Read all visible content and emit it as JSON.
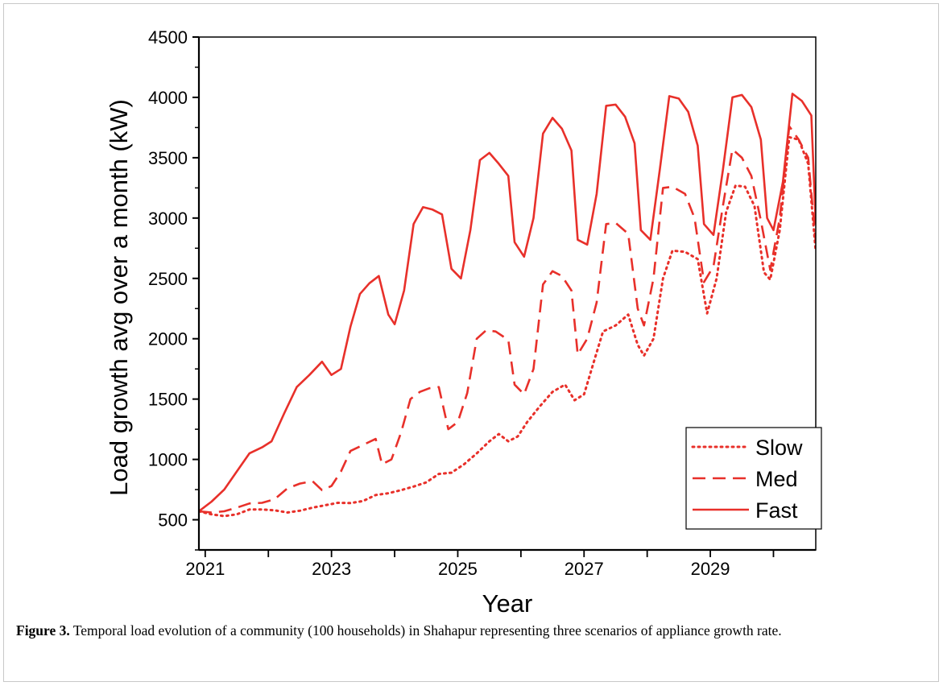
{
  "caption": {
    "label": "Figure 3.",
    "text": " Temporal load evolution of a community (100 households) in Shahapur representing three scenarios of appliance growth rate."
  },
  "chart_data": {
    "type": "line",
    "title": "",
    "xlabel": "Year",
    "ylabel": "Load growth avg over a month (kW)",
    "xlim": [
      2020.9,
      2030.67
    ],
    "ylim": [
      250,
      4500
    ],
    "xticks": [
      2021,
      2023,
      2025,
      2027,
      2029
    ],
    "yticks": [
      500,
      1000,
      1500,
      2000,
      2500,
      3000,
      3500,
      4000,
      4500
    ],
    "grid": false,
    "legend_position": "bottom-right",
    "color": "#e8302a",
    "series": [
      {
        "name": "Slow",
        "style": "dotted",
        "points": [
          [
            2020.9,
            570
          ],
          [
            2021.1,
            545
          ],
          [
            2021.3,
            530
          ],
          [
            2021.5,
            545
          ],
          [
            2021.7,
            585
          ],
          [
            2021.9,
            585
          ],
          [
            2022.1,
            578
          ],
          [
            2022.3,
            560
          ],
          [
            2022.5,
            575
          ],
          [
            2022.7,
            600
          ],
          [
            2022.9,
            620
          ],
          [
            2023.1,
            640
          ],
          [
            2023.3,
            638
          ],
          [
            2023.5,
            655
          ],
          [
            2023.7,
            705
          ],
          [
            2023.9,
            720
          ],
          [
            2024.1,
            745
          ],
          [
            2024.3,
            775
          ],
          [
            2024.5,
            810
          ],
          [
            2024.7,
            880
          ],
          [
            2024.9,
            890
          ],
          [
            2025.1,
            960
          ],
          [
            2025.3,
            1050
          ],
          [
            2025.5,
            1150
          ],
          [
            2025.65,
            1210
          ],
          [
            2025.8,
            1150
          ],
          [
            2025.95,
            1190
          ],
          [
            2026.1,
            1310
          ],
          [
            2026.3,
            1440
          ],
          [
            2026.5,
            1560
          ],
          [
            2026.7,
            1620
          ],
          [
            2026.85,
            1490
          ],
          [
            2027.0,
            1540
          ],
          [
            2027.15,
            1800
          ],
          [
            2027.3,
            2060
          ],
          [
            2027.5,
            2110
          ],
          [
            2027.7,
            2200
          ],
          [
            2027.85,
            1950
          ],
          [
            2027.95,
            1860
          ],
          [
            2028.1,
            2000
          ],
          [
            2028.25,
            2500
          ],
          [
            2028.4,
            2730
          ],
          [
            2028.6,
            2720
          ],
          [
            2028.8,
            2660
          ],
          [
            2028.95,
            2210
          ],
          [
            2029.1,
            2500
          ],
          [
            2029.25,
            3050
          ],
          [
            2029.4,
            3270
          ],
          [
            2029.55,
            3260
          ],
          [
            2029.7,
            3100
          ],
          [
            2029.85,
            2550
          ],
          [
            2029.95,
            2490
          ],
          [
            2030.1,
            2900
          ],
          [
            2030.25,
            3670
          ],
          [
            2030.4,
            3650
          ],
          [
            2030.55,
            3450
          ],
          [
            2030.67,
            2720
          ]
        ]
      },
      {
        "name": "Med",
        "style": "dashed",
        "points": [
          [
            2020.9,
            570
          ],
          [
            2021.1,
            560
          ],
          [
            2021.3,
            570
          ],
          [
            2021.5,
            600
          ],
          [
            2021.7,
            635
          ],
          [
            2021.9,
            640
          ],
          [
            2022.1,
            670
          ],
          [
            2022.3,
            760
          ],
          [
            2022.5,
            800
          ],
          [
            2022.7,
            820
          ],
          [
            2022.85,
            745
          ],
          [
            2023.0,
            780
          ],
          [
            2023.15,
            900
          ],
          [
            2023.3,
            1070
          ],
          [
            2023.5,
            1120
          ],
          [
            2023.7,
            1170
          ],
          [
            2023.8,
            960
          ],
          [
            2023.95,
            1000
          ],
          [
            2024.1,
            1220
          ],
          [
            2024.25,
            1500
          ],
          [
            2024.4,
            1560
          ],
          [
            2024.55,
            1590
          ],
          [
            2024.7,
            1600
          ],
          [
            2024.85,
            1250
          ],
          [
            2025.0,
            1310
          ],
          [
            2025.15,
            1550
          ],
          [
            2025.3,
            2000
          ],
          [
            2025.45,
            2070
          ],
          [
            2025.6,
            2060
          ],
          [
            2025.8,
            1990
          ],
          [
            2025.9,
            1620
          ],
          [
            2026.05,
            1540
          ],
          [
            2026.2,
            1750
          ],
          [
            2026.35,
            2450
          ],
          [
            2026.5,
            2560
          ],
          [
            2026.65,
            2520
          ],
          [
            2026.8,
            2400
          ],
          [
            2026.9,
            1870
          ],
          [
            2027.05,
            2000
          ],
          [
            2027.2,
            2300
          ],
          [
            2027.35,
            2950
          ],
          [
            2027.5,
            2960
          ],
          [
            2027.7,
            2870
          ],
          [
            2027.85,
            2250
          ],
          [
            2027.95,
            2110
          ],
          [
            2028.1,
            2500
          ],
          [
            2028.25,
            3250
          ],
          [
            2028.4,
            3260
          ],
          [
            2028.6,
            3200
          ],
          [
            2028.75,
            3000
          ],
          [
            2028.9,
            2470
          ],
          [
            2029.05,
            2600
          ],
          [
            2029.2,
            3100
          ],
          [
            2029.35,
            3570
          ],
          [
            2029.5,
            3500
          ],
          [
            2029.65,
            3350
          ],
          [
            2029.8,
            2980
          ],
          [
            2029.95,
            2570
          ],
          [
            2030.1,
            3000
          ],
          [
            2030.25,
            3760
          ],
          [
            2030.4,
            3650
          ],
          [
            2030.55,
            3500
          ],
          [
            2030.67,
            2800
          ]
        ]
      },
      {
        "name": "Fast",
        "style": "solid",
        "points": [
          [
            2020.9,
            570
          ],
          [
            2021.1,
            650
          ],
          [
            2021.3,
            750
          ],
          [
            2021.5,
            900
          ],
          [
            2021.7,
            1050
          ],
          [
            2021.9,
            1100
          ],
          [
            2022.05,
            1150
          ],
          [
            2022.25,
            1380
          ],
          [
            2022.45,
            1600
          ],
          [
            2022.65,
            1700
          ],
          [
            2022.85,
            1810
          ],
          [
            2023.0,
            1700
          ],
          [
            2023.15,
            1750
          ],
          [
            2023.3,
            2100
          ],
          [
            2023.45,
            2370
          ],
          [
            2023.6,
            2460
          ],
          [
            2023.75,
            2520
          ],
          [
            2023.9,
            2200
          ],
          [
            2024.0,
            2120
          ],
          [
            2024.15,
            2400
          ],
          [
            2024.3,
            2950
          ],
          [
            2024.45,
            3090
          ],
          [
            2024.6,
            3070
          ],
          [
            2024.75,
            3030
          ],
          [
            2024.9,
            2580
          ],
          [
            2025.05,
            2500
          ],
          [
            2025.2,
            2900
          ],
          [
            2025.35,
            3480
          ],
          [
            2025.5,
            3540
          ],
          [
            2025.65,
            3450
          ],
          [
            2025.8,
            3350
          ],
          [
            2025.9,
            2800
          ],
          [
            2026.05,
            2680
          ],
          [
            2026.2,
            3000
          ],
          [
            2026.35,
            3700
          ],
          [
            2026.5,
            3830
          ],
          [
            2026.65,
            3740
          ],
          [
            2026.8,
            3560
          ],
          [
            2026.9,
            2820
          ],
          [
            2027.05,
            2780
          ],
          [
            2027.2,
            3200
          ],
          [
            2027.35,
            3930
          ],
          [
            2027.5,
            3940
          ],
          [
            2027.65,
            3840
          ],
          [
            2027.8,
            3620
          ],
          [
            2027.9,
            2900
          ],
          [
            2028.05,
            2820
          ],
          [
            2028.2,
            3400
          ],
          [
            2028.35,
            4010
          ],
          [
            2028.5,
            3990
          ],
          [
            2028.65,
            3880
          ],
          [
            2028.8,
            3600
          ],
          [
            2028.9,
            2950
          ],
          [
            2029.05,
            2860
          ],
          [
            2029.2,
            3400
          ],
          [
            2029.35,
            4000
          ],
          [
            2029.5,
            4020
          ],
          [
            2029.65,
            3920
          ],
          [
            2029.8,
            3650
          ],
          [
            2029.9,
            3000
          ],
          [
            2030.0,
            2900
          ],
          [
            2030.15,
            3300
          ],
          [
            2030.3,
            4030
          ],
          [
            2030.45,
            3970
          ],
          [
            2030.6,
            3850
          ],
          [
            2030.67,
            2950
          ]
        ]
      }
    ]
  }
}
